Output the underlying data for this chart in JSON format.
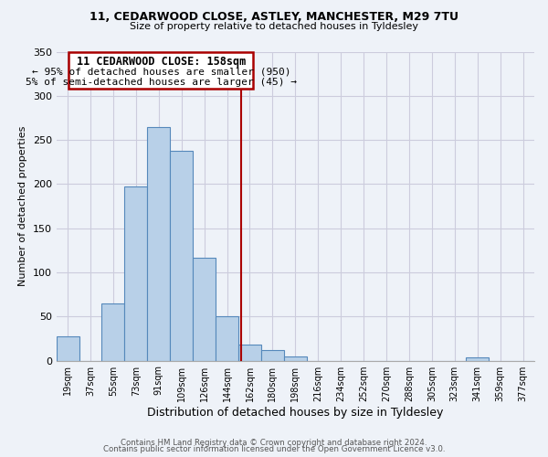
{
  "title1": "11, CEDARWOOD CLOSE, ASTLEY, MANCHESTER, M29 7TU",
  "title2": "Size of property relative to detached houses in Tyldesley",
  "xlabel": "Distribution of detached houses by size in Tyldesley",
  "ylabel": "Number of detached properties",
  "bar_labels": [
    "19sqm",
    "37sqm",
    "55sqm",
    "73sqm",
    "91sqm",
    "109sqm",
    "126sqm",
    "144sqm",
    "162sqm",
    "180sqm",
    "198sqm",
    "216sqm",
    "234sqm",
    "252sqm",
    "270sqm",
    "288sqm",
    "305sqm",
    "323sqm",
    "341sqm",
    "359sqm",
    "377sqm"
  ],
  "bar_values": [
    28,
    0,
    65,
    197,
    265,
    238,
    117,
    50,
    18,
    12,
    5,
    0,
    0,
    0,
    0,
    0,
    0,
    0,
    4,
    0,
    0
  ],
  "bar_color": "#b8d0e8",
  "bar_edge_color": "#5588bb",
  "vline_color": "#aa0000",
  "annotation_title": "11 CEDARWOOD CLOSE: 158sqm",
  "annotation_line1": "← 95% of detached houses are smaller (950)",
  "annotation_line2": "5% of semi-detached houses are larger (45) →",
  "box_edge_color": "#aa0000",
  "ylim": [
    0,
    350
  ],
  "yticks": [
    0,
    50,
    100,
    150,
    200,
    250,
    300,
    350
  ],
  "footer1": "Contains HM Land Registry data © Crown copyright and database right 2024.",
  "footer2": "Contains public sector information licensed under the Open Government Licence v3.0.",
  "bg_color": "#eef2f8",
  "grid_color": "#ccccdd"
}
